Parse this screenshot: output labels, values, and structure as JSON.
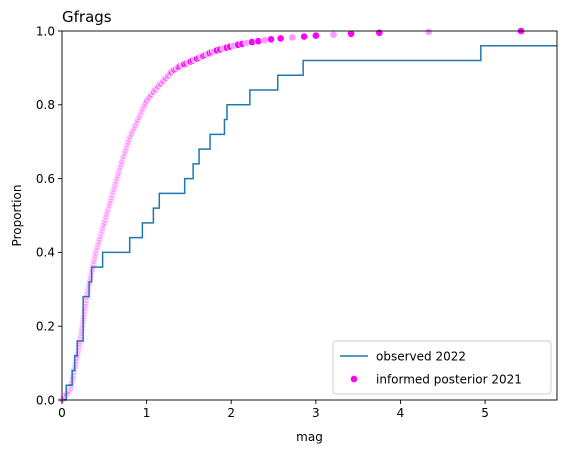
{
  "chart_data": {
    "type": "ecdf",
    "title": "Gfrags",
    "xlabel": "mag",
    "ylabel": "Proportion",
    "xlim": [
      0,
      5.85
    ],
    "ylim": [
      0,
      1.0
    ],
    "x_ticks": [
      "0",
      "1",
      "2",
      "3",
      "4",
      "5"
    ],
    "y_ticks": [
      "0.0",
      "0.2",
      "0.4",
      "0.6",
      "0.8",
      "1.0"
    ],
    "grid": false,
    "legend_position": "lower right",
    "series": [
      {
        "name": "observed 2022",
        "kind": "step",
        "color": "#1f77b4",
        "steps": [
          [
            0.0,
            0.0
          ],
          [
            0.05,
            0.04
          ],
          [
            0.12,
            0.08
          ],
          [
            0.15,
            0.12
          ],
          [
            0.18,
            0.16
          ],
          [
            0.25,
            0.28
          ],
          [
            0.32,
            0.32
          ],
          [
            0.35,
            0.36
          ],
          [
            0.48,
            0.4
          ],
          [
            0.8,
            0.44
          ],
          [
            0.95,
            0.48
          ],
          [
            1.08,
            0.52
          ],
          [
            1.15,
            0.56
          ],
          [
            1.45,
            0.6
          ],
          [
            1.55,
            0.64
          ],
          [
            1.62,
            0.68
          ],
          [
            1.75,
            0.72
          ],
          [
            1.92,
            0.76
          ],
          [
            1.95,
            0.8
          ],
          [
            2.22,
            0.84
          ],
          [
            2.55,
            0.88
          ],
          [
            2.85,
            0.92
          ],
          [
            4.95,
            0.96
          ]
        ]
      },
      {
        "name": "informed posterior 2021",
        "kind": "scatter",
        "color": "#ff00ff",
        "alt_color": "#ff99ff",
        "curve_points": [
          [
            0.0,
            0.0
          ],
          [
            0.1,
            0.03
          ],
          [
            0.2,
            0.14
          ],
          [
            0.3,
            0.29
          ],
          [
            0.4,
            0.4
          ],
          [
            0.5,
            0.48
          ],
          [
            0.6,
            0.56
          ],
          [
            0.7,
            0.64
          ],
          [
            0.8,
            0.71
          ],
          [
            0.9,
            0.76
          ],
          [
            1.0,
            0.81
          ],
          [
            1.1,
            0.84
          ],
          [
            1.2,
            0.865
          ],
          [
            1.3,
            0.89
          ],
          [
            1.4,
            0.905
          ],
          [
            1.6,
            0.925
          ],
          [
            1.8,
            0.945
          ],
          [
            2.0,
            0.958
          ],
          [
            2.2,
            0.968
          ],
          [
            2.5,
            0.978
          ],
          [
            3.0,
            0.987
          ],
          [
            3.5,
            0.993
          ],
          [
            4.0,
            0.996
          ],
          [
            5.0,
            0.999
          ],
          [
            5.85,
            1.0
          ]
        ]
      }
    ]
  }
}
